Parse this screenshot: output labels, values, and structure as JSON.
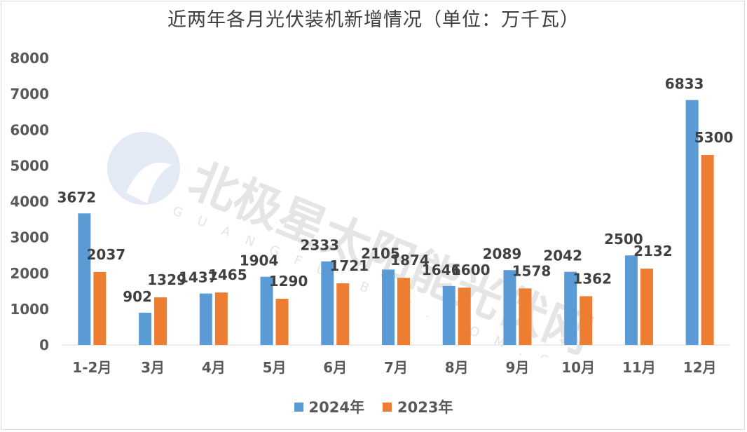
{
  "title": "近两年各月光伏装机新增情况（单位：万千瓦）",
  "watermark": {
    "brand_text": "北极星太阳能光伏网",
    "subtext": "GUANGFU.BJX.COM.CN"
  },
  "chart_data": {
    "type": "bar",
    "categories": [
      "1-2月",
      "3月",
      "4月",
      "5月",
      "6月",
      "7月",
      "8月",
      "9月",
      "10月",
      "11月",
      "12月"
    ],
    "series": [
      {
        "name": "2024年",
        "color": "#5b9bd5",
        "values": [
          3672,
          902,
          1437,
          1904,
          2333,
          2105,
          1646,
          2089,
          2042,
          2500,
          6833
        ]
      },
      {
        "name": "2023年",
        "color": "#ed7d31",
        "values": [
          2037,
          1329,
          1465,
          1290,
          1721,
          1874,
          1600,
          1578,
          1362,
          2132,
          5300
        ]
      }
    ],
    "ylim": [
      0,
      8000
    ],
    "yticks": [
      "0",
      "1000",
      "2000",
      "3000",
      "4000",
      "5000",
      "6000",
      "7000",
      "8000"
    ],
    "grid": false,
    "legend_position": "bottom",
    "data_labels": true
  }
}
